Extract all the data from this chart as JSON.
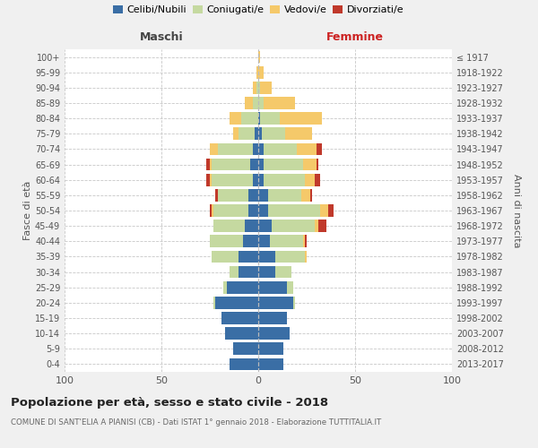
{
  "age_groups": [
    "0-4",
    "5-9",
    "10-14",
    "15-19",
    "20-24",
    "25-29",
    "30-34",
    "35-39",
    "40-44",
    "45-49",
    "50-54",
    "55-59",
    "60-64",
    "65-69",
    "70-74",
    "75-79",
    "80-84",
    "85-89",
    "90-94",
    "95-99",
    "100+"
  ],
  "birth_years": [
    "2013-2017",
    "2008-2012",
    "2003-2007",
    "1998-2002",
    "1993-1997",
    "1988-1992",
    "1983-1987",
    "1978-1982",
    "1973-1977",
    "1968-1972",
    "1963-1967",
    "1958-1962",
    "1953-1957",
    "1948-1952",
    "1943-1947",
    "1938-1942",
    "1933-1937",
    "1928-1932",
    "1923-1927",
    "1918-1922",
    "≤ 1917"
  ],
  "colors": {
    "celibi": "#3a6ea5",
    "coniugati": "#c5d9a0",
    "vedovi": "#f5c96a",
    "divorziati": "#c0392b"
  },
  "males": {
    "celibi": [
      15,
      13,
      17,
      19,
      22,
      16,
      10,
      10,
      8,
      7,
      5,
      5,
      3,
      4,
      3,
      2,
      0,
      0,
      0,
      0,
      0
    ],
    "coniugati": [
      0,
      0,
      0,
      0,
      1,
      2,
      5,
      14,
      17,
      16,
      18,
      16,
      21,
      20,
      18,
      8,
      9,
      3,
      1,
      0,
      0
    ],
    "vedovi": [
      0,
      0,
      0,
      0,
      0,
      0,
      0,
      0,
      0,
      0,
      1,
      0,
      1,
      1,
      4,
      3,
      6,
      4,
      2,
      1,
      0
    ],
    "divorziati": [
      0,
      0,
      0,
      0,
      0,
      0,
      0,
      0,
      0,
      0,
      1,
      1,
      2,
      2,
      0,
      0,
      0,
      0,
      0,
      0,
      0
    ]
  },
  "females": {
    "celibi": [
      13,
      13,
      16,
      15,
      18,
      15,
      9,
      9,
      6,
      7,
      5,
      5,
      3,
      3,
      3,
      2,
      1,
      0,
      0,
      0,
      0
    ],
    "coniugati": [
      0,
      0,
      0,
      0,
      1,
      3,
      8,
      15,
      17,
      22,
      27,
      17,
      21,
      20,
      17,
      12,
      10,
      3,
      1,
      0,
      0
    ],
    "vedovi": [
      0,
      0,
      0,
      0,
      0,
      0,
      0,
      1,
      1,
      2,
      4,
      5,
      5,
      7,
      10,
      14,
      22,
      16,
      6,
      3,
      1
    ],
    "divorziati": [
      0,
      0,
      0,
      0,
      0,
      0,
      0,
      0,
      1,
      4,
      3,
      1,
      3,
      1,
      3,
      0,
      0,
      0,
      0,
      0,
      0
    ]
  },
  "title": "Popolazione per età, sesso e stato civile - 2018",
  "subtitle": "COMUNE DI SANT'ELIA A PIANISI (CB) - Dati ISTAT 1° gennaio 2018 - Elaborazione TUTTITALIA.IT",
  "header_left": "Maschi",
  "header_right": "Femmine",
  "ylabel_left": "Fasce di età",
  "ylabel_right": "Anni di nascita",
  "xlim": 100,
  "background": "#f0f0f0",
  "plot_bg": "#ffffff",
  "grid_color": "#c8c8c8"
}
